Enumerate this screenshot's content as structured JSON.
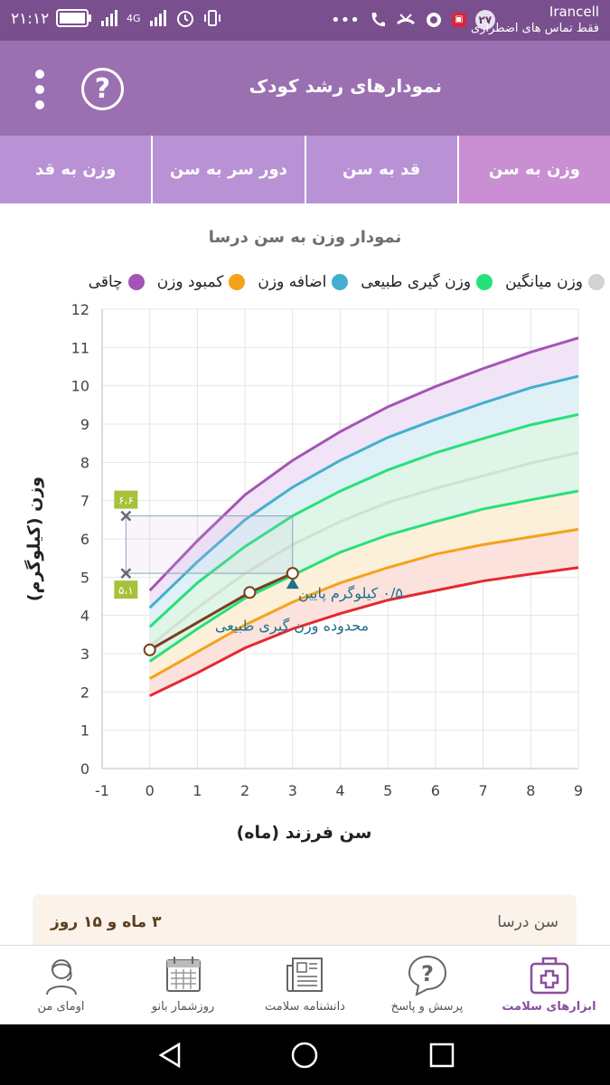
{
  "status": {
    "time": "۲۱:۱۲",
    "carrier": "Irancell",
    "carrier_note": "فقط تماس های اضطراری",
    "notif_count": "۲۷",
    "network": "4G",
    "icon_names": [
      "volte-icon",
      "signal-icon",
      "alarm-icon",
      "vibrate-icon",
      "battery-icon",
      "more-icon",
      "call-icon",
      "missed-call-icon",
      "whatsapp-icon",
      "news-icon"
    ]
  },
  "app_bar": {
    "title": "نمودارهای رشد کودک",
    "help_glyph": "?",
    "colors": {
      "bar": "#9a70b1",
      "status": "#7a4f8e"
    }
  },
  "tabs": [
    {
      "label": "وزن به سن",
      "active": true
    },
    {
      "label": "قد به سن",
      "active": false
    },
    {
      "label": "دور سر به سن",
      "active": false
    },
    {
      "label": "وزن به قد",
      "active": false
    }
  ],
  "chart_title": "نمودار وزن به سن درسا",
  "legend": [
    {
      "label": "چاقی",
      "color": "#a454b5"
    },
    {
      "label": "کمبود وزن",
      "color": "#f5a21a"
    },
    {
      "label": "اضافه وزن",
      "color": "#43afcf"
    },
    {
      "label": "وزن گیری طبیعی",
      "color": "#27e07a"
    },
    {
      "label": "وزن میانگین",
      "color": "#d2d2d2"
    }
  ],
  "chart_data": {
    "type": "line",
    "xlabel": "سن فرزند (ماه)",
    "ylabel": "وزن (کیلوگرم)",
    "xlim": [
      -1,
      9
    ],
    "ylim": [
      0,
      12
    ],
    "x_ticks": [
      "-1",
      "0",
      "1",
      "2",
      "3",
      "4",
      "5",
      "6",
      "7",
      "8",
      "9"
    ],
    "y_ticks": [
      "0",
      "1",
      "2",
      "3",
      "4",
      "5",
      "6",
      "7",
      "8",
      "9",
      "10",
      "11",
      "12"
    ],
    "x": [
      0,
      1,
      2,
      3,
      4,
      5,
      6,
      7,
      8,
      9
    ],
    "series": [
      {
        "values": [
          4.65,
          5.95,
          7.15,
          8.05,
          8.8,
          9.45,
          9.98,
          10.45,
          10.88,
          11.25
        ],
        "color": "#a454b5"
      },
      {
        "values": [
          4.2,
          5.4,
          6.5,
          7.35,
          8.05,
          8.65,
          9.12,
          9.55,
          9.95,
          10.25
        ],
        "color": "#43afcf"
      },
      {
        "values": [
          3.7,
          4.85,
          5.8,
          6.6,
          7.25,
          7.8,
          8.25,
          8.62,
          8.98,
          9.25
        ],
        "color": "#27e07a"
      },
      {
        "values": [
          3.2,
          4.2,
          5.1,
          5.85,
          6.45,
          6.95,
          7.32,
          7.65,
          7.98,
          8.25
        ],
        "color": "#cfe2cc"
      },
      {
        "values": [
          2.8,
          3.65,
          4.45,
          5.05,
          5.65,
          6.1,
          6.45,
          6.78,
          7.02,
          7.25
        ],
        "color": "#27e07a"
      },
      {
        "values": [
          2.35,
          3.05,
          3.75,
          4.35,
          4.85,
          5.25,
          5.6,
          5.85,
          6.05,
          6.25
        ],
        "color": "#f5a21a"
      },
      {
        "values": [
          1.9,
          2.5,
          3.15,
          3.65,
          4.05,
          4.4,
          4.65,
          4.9,
          5.08,
          5.25
        ],
        "color": "#e5292f"
      }
    ],
    "child_series": {
      "x": [
        0,
        2.1,
        3
      ],
      "values": [
        3.1,
        4.6,
        5.1
      ],
      "color": "#7a3f1c"
    },
    "reference_markers": [
      {
        "x": -0.5,
        "y": 6.6,
        "label": "۶،۶"
      },
      {
        "x": -0.5,
        "y": 5.1,
        "label": "۵،۱"
      }
    ],
    "annotation_lines": [
      "۰/۵ کیلوگرم پایین",
      "محدوده وزن گیری طبیعی"
    ],
    "annotation_color": "#1f6f8b"
  },
  "info_card": {
    "label": "سن درسا",
    "value": "۳ ماه و ۱۵ روز"
  },
  "bottom_nav": [
    {
      "label": "ابزارهای سلامت",
      "icon": "medical-kit-icon",
      "active": true
    },
    {
      "label": "پرسش و پاسخ",
      "icon": "question-bubble-icon",
      "active": false
    },
    {
      "label": "دانشنامه سلامت",
      "icon": "newspaper-icon",
      "active": false
    },
    {
      "label": "روزشمار بانو",
      "icon": "calendar-icon",
      "active": false
    },
    {
      "label": "اومای من",
      "icon": "woman-avatar-icon",
      "active": false
    }
  ],
  "system_nav": [
    "back-icon",
    "home-icon",
    "recents-icon"
  ]
}
